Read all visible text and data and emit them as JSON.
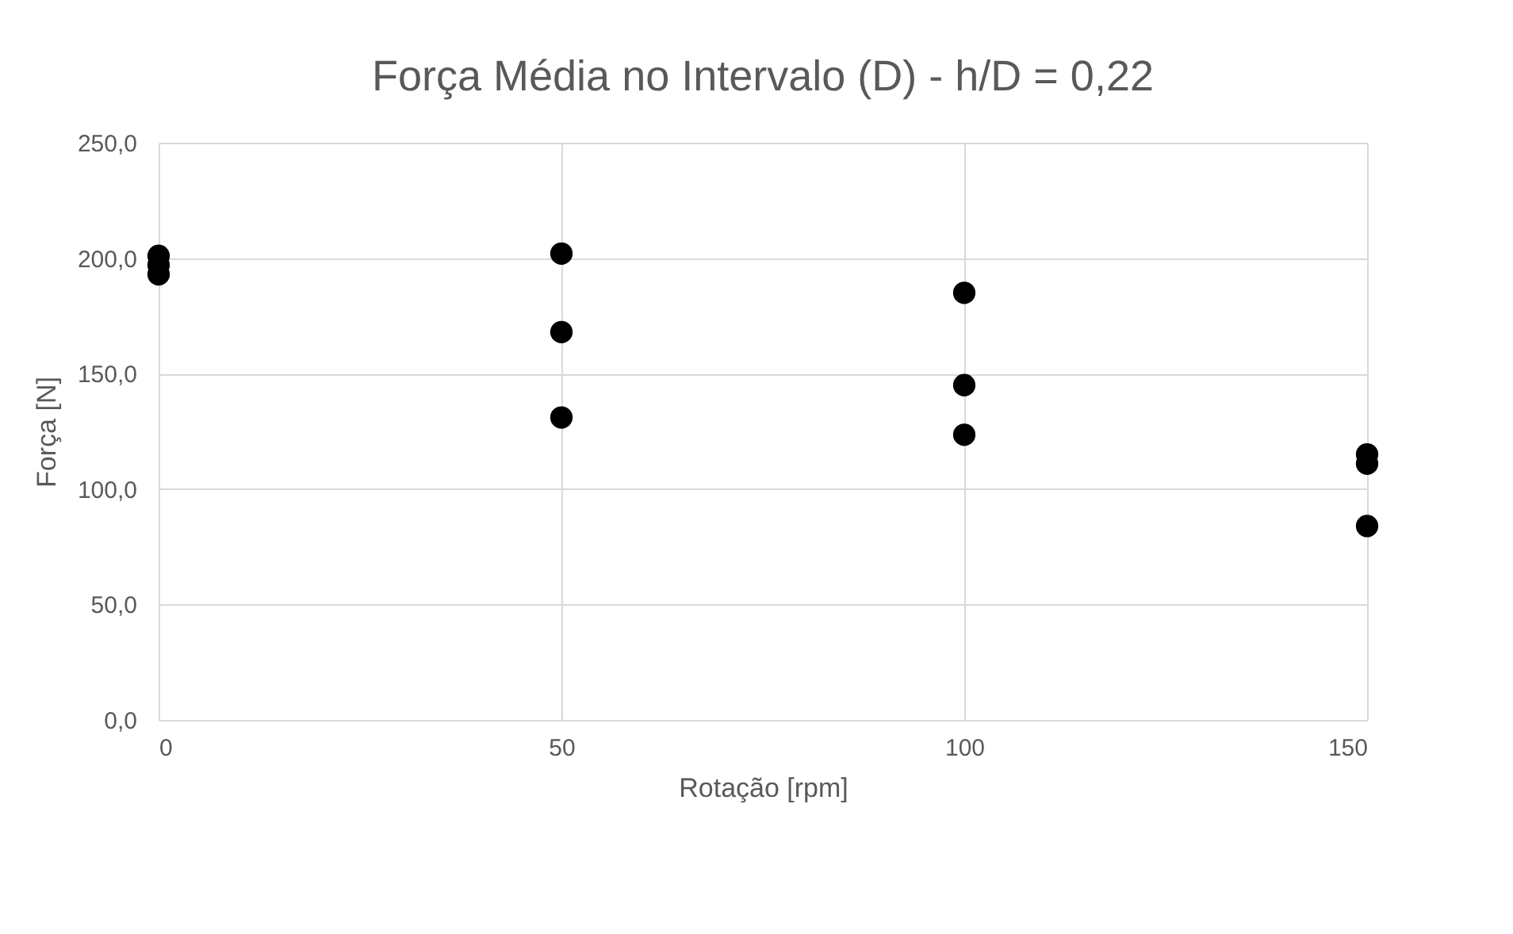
{
  "chart_data": {
    "type": "scatter",
    "title": "Força Média no Intervalo (D) - h/D = 0,22",
    "xlabel": "Rotação [rpm]",
    "ylabel": "Força [N]",
    "x": [
      0,
      0,
      0,
      50,
      50,
      50,
      100,
      100,
      100,
      150,
      150,
      150
    ],
    "series": [
      {
        "color": "#000000",
        "values": [
          201,
          197,
          193,
          202,
          168,
          131,
          185,
          145,
          123.5,
          115,
          111,
          84
        ]
      }
    ],
    "xlim": [
      0,
      150
    ],
    "xticks": [
      0,
      50,
      100,
      150
    ],
    "ylim": [
      0,
      250
    ],
    "yticks": [
      {
        "value": 0,
        "label": "0,0"
      },
      {
        "value": 50,
        "label": "50,0"
      },
      {
        "value": 100,
        "label": "100,0"
      },
      {
        "value": 150,
        "label": "150,0"
      },
      {
        "value": 200,
        "label": "200,0"
      },
      {
        "value": 250,
        "label": "250,0"
      }
    ],
    "grid": true,
    "marker": "circle"
  }
}
